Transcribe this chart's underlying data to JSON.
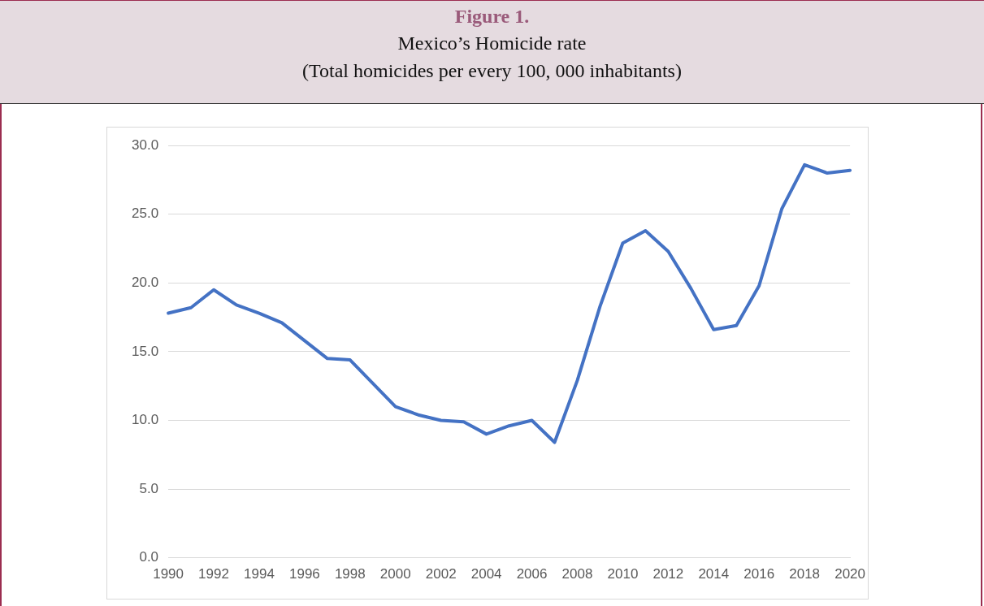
{
  "chart_data": {
    "type": "line",
    "title": "Figure 1.",
    "subtitle": "Mexico’s Homicide rate\n(Total homicides per every 100, 000 inhabitants)",
    "categories": [
      "1990",
      null,
      "1992",
      null,
      "1994",
      null,
      "1996",
      null,
      "1998",
      null,
      "2000",
      null,
      "2002",
      null,
      "2004",
      null,
      "2006",
      null,
      "2008",
      null,
      "2010",
      null,
      "2012",
      null,
      "2014",
      null,
      "2016",
      null,
      "2018",
      null,
      "2020"
    ],
    "series": [
      {
        "color": "#4472c4",
        "values": [
          17.8,
          18.2,
          19.5,
          18.4,
          17.8,
          17.1,
          15.8,
          14.5,
          14.4,
          12.7,
          11.0,
          10.4,
          10.0,
          9.9,
          9.0,
          9.6,
          10.0,
          8.4,
          12.9,
          18.3,
          22.9,
          23.8,
          22.3,
          19.6,
          16.6,
          16.9,
          19.8,
          25.4,
          28.6,
          28.0,
          28.2
        ]
      }
    ],
    "ylim": [
      0,
      30
    ],
    "yticks": [
      {
        "value": 0,
        "label": "0.0"
      },
      {
        "value": 5,
        "label": "5.0"
      },
      {
        "value": 10,
        "label": "10.0"
      },
      {
        "value": 15,
        "label": "15.0"
      },
      {
        "value": 20,
        "label": "20.0"
      },
      {
        "value": 25,
        "label": "25.0"
      },
      {
        "value": 30,
        "label": "30.0"
      }
    ],
    "grid": "y",
    "legend": false,
    "marker": "none",
    "line_style": "solid"
  }
}
